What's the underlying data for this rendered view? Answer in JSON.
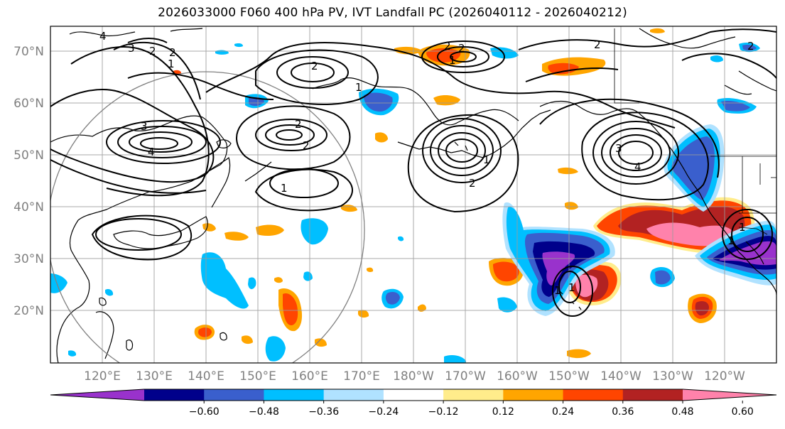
{
  "title": "2026033000 F060 400 hPa PV, IVT Landfall PC (2026040112 - 2026040212)",
  "map": {
    "lat_labels": [
      "70°N",
      "60°N",
      "50°N",
      "40°N",
      "30°N",
      "20°N"
    ],
    "lon_labels": [
      "120°E",
      "130°E",
      "140°E",
      "150°E",
      "160°E",
      "170°E",
      "180°W",
      "170°W",
      "160°W",
      "150°W",
      "140°W",
      "130°W",
      "120°W"
    ],
    "contour_labels": [
      "4",
      "3",
      "2",
      "2",
      "1",
      "3",
      "4",
      "2",
      "1",
      "2",
      "2",
      "1",
      "2",
      "2",
      "1",
      "2",
      "2",
      "3",
      "4",
      "1",
      "1",
      "1",
      "1",
      "2",
      "1"
    ]
  },
  "colorbar": {
    "ticks": [
      "−0.60",
      "−0.48",
      "−0.36",
      "−0.24",
      "−0.12",
      "0.12",
      "0.24",
      "0.36",
      "0.48",
      "0.60"
    ],
    "colors": [
      "#9932cc",
      "#00008b",
      "#3a5fcd",
      "#00bfff",
      "#b0e2ff",
      "#ffffff",
      "#ffec8b",
      "#ffa500",
      "#ff4500",
      "#b22222",
      "#ff82ab"
    ]
  }
}
